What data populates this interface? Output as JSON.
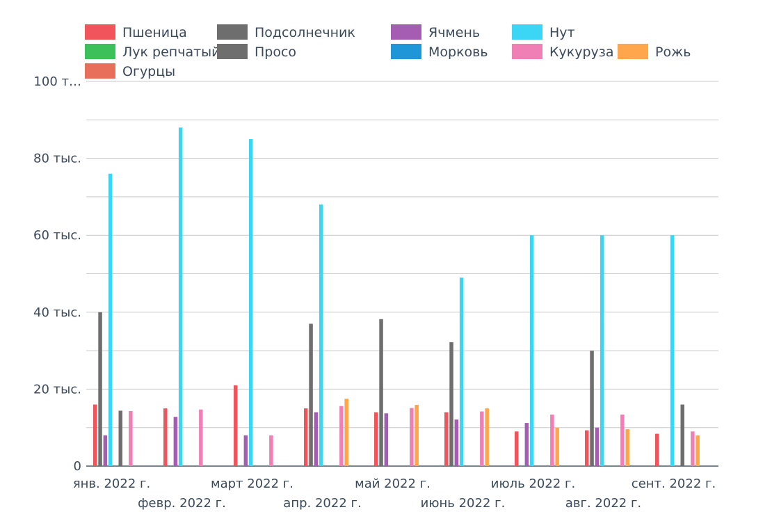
{
  "chart_data": {
    "type": "bar",
    "categories": [
      "янв. 2022 г.",
      "февр. 2022 г.",
      "март 2022 г.",
      "апр. 2022 г.",
      "май 2022 г.",
      "июнь 2022 г.",
      "июль 2022 г.",
      "авг. 2022 г.",
      "сент. 2022 г."
    ],
    "series": [
      {
        "name": "Пшеница",
        "color": "#f2545b",
        "values": [
          16000,
          15000,
          21000,
          15000,
          14000,
          14000,
          9000,
          9300,
          8400
        ]
      },
      {
        "name": "Подсолнечник",
        "color": "#6e6e6e",
        "values": [
          40000,
          0,
          0,
          37000,
          38200,
          32200,
          0,
          30000,
          0
        ]
      },
      {
        "name": "Ячмень",
        "color": "#a45db3",
        "values": [
          8000,
          12800,
          8000,
          14000,
          13700,
          12100,
          11200,
          10000,
          0
        ]
      },
      {
        "name": "Нут",
        "color": "#3bd5f5",
        "values": [
          76000,
          88000,
          85000,
          68000,
          0,
          49000,
          60000,
          60000,
          60000
        ]
      },
      {
        "name": "Лук репчатый",
        "color": "#3cc15a",
        "values": [
          0,
          0,
          0,
          0,
          0,
          0,
          0,
          0,
          0
        ]
      },
      {
        "name": "Просо",
        "color": "#6e6e6e",
        "values": [
          14400,
          0,
          0,
          0,
          0,
          0,
          0,
          0,
          16000
        ]
      },
      {
        "name": "Морковь",
        "color": "#1e96d8",
        "values": [
          0,
          0,
          0,
          0,
          0,
          0,
          0,
          0,
          0
        ]
      },
      {
        "name": "Кукуруза",
        "color": "#f07fb5",
        "values": [
          14300,
          14700,
          8000,
          15600,
          15100,
          14200,
          13400,
          13400,
          9000
        ]
      },
      {
        "name": "Рожь",
        "color": "#ffa64d",
        "values": [
          0,
          0,
          0,
          17500,
          15900,
          15000,
          10000,
          9600,
          8000
        ]
      },
      {
        "name": "Огурцы",
        "color": "#e8705a",
        "values": [
          0,
          0,
          0,
          0,
          0,
          0,
          0,
          0,
          0
        ]
      }
    ],
    "ylim": [
      0,
      100000
    ],
    "y_ticks": [
      {
        "value": 0,
        "label": "0"
      },
      {
        "value": 20000,
        "label": "20 тыс."
      },
      {
        "value": 40000,
        "label": "40 тыс."
      },
      {
        "value": 60000,
        "label": "60 тыс."
      },
      {
        "value": 80000,
        "label": "80 тыс."
      },
      {
        "value": 100000,
        "label": "100 т…"
      }
    ],
    "grid": true,
    "legend_position": "top",
    "title": "",
    "xlabel": "",
    "ylabel": ""
  }
}
